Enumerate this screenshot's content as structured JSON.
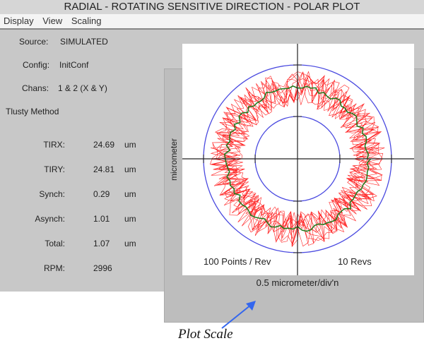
{
  "title": "RADIAL - ROTATING SENSITIVE DIRECTION - POLAR PLOT",
  "menu": [
    "Display",
    "View",
    "Scaling"
  ],
  "info": {
    "source_label": "Source:",
    "source": "SIMULATED",
    "config_label": "Config:",
    "config": "InitConf",
    "chans_label": "Chans:",
    "chans": "1 & 2 (X & Y)",
    "method": "Tlusty Method"
  },
  "metrics": [
    {
      "label": "TIRX:",
      "value": "24.69",
      "unit": "um"
    },
    {
      "label": "TIRY:",
      "value": "24.81",
      "unit": "um"
    },
    {
      "label": "Synch:",
      "value": "0.29",
      "unit": "um"
    },
    {
      "label": "Asynch:",
      "value": "1.01",
      "unit": "um"
    },
    {
      "label": "Total:",
      "value": "1.07",
      "unit": "um"
    },
    {
      "label": "RPM:",
      "value": "2996",
      "unit": ""
    }
  ],
  "plot": {
    "y_axis_label": "micrometer",
    "points_label": "100 Points / Rev",
    "revs_label": "10 Revs",
    "scale_label": "0.5 micrometer/div'n",
    "colors": {
      "circles": "#4a4ae0",
      "raw": "#ff2020",
      "mean": "#1a7a1a",
      "axes": "#222222"
    }
  },
  "annotation": {
    "text": "Plot Scale",
    "arrow_color": "#3366ee"
  }
}
